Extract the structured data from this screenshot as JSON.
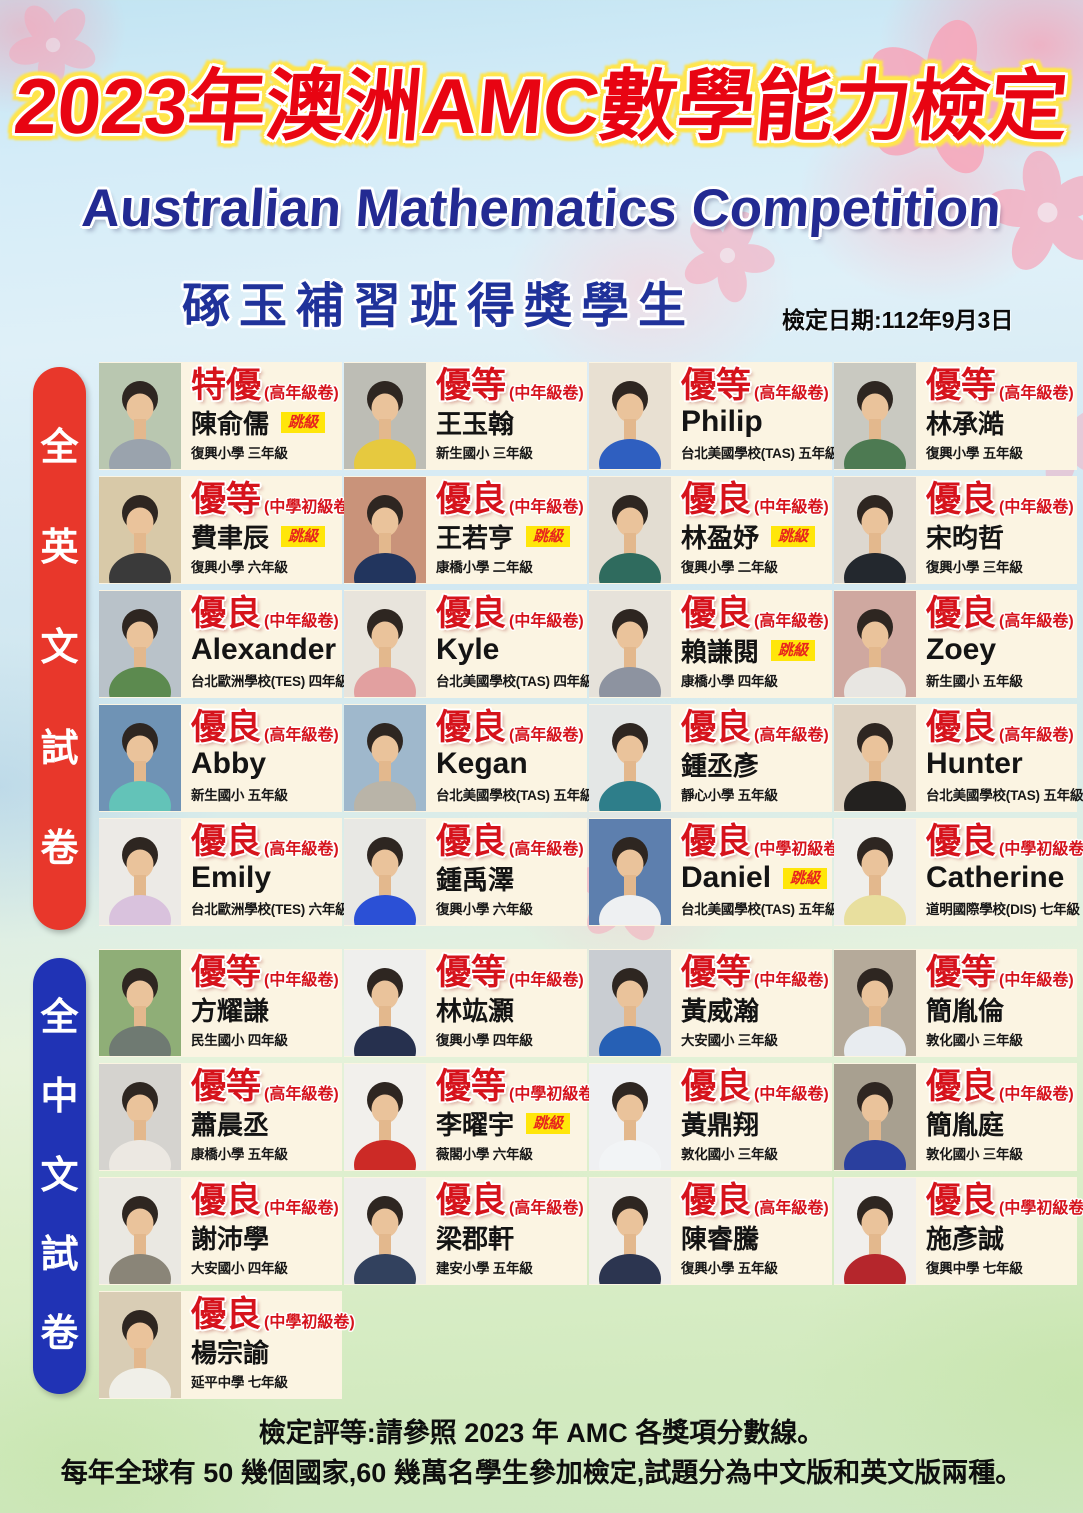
{
  "header": {
    "title": "2023年澳洲AMC數學能力檢定",
    "subtitle": "Australian Mathematics Competition",
    "banner": "硺玉補習班得獎學生",
    "date": "檢定日期:112年9月3日"
  },
  "badge_label": "跳級",
  "colors": {
    "award_red": "#d6131c",
    "english_pill": "#e8372b",
    "chinese_pill": "#2033b5",
    "badge_yellow": "#ffe60a",
    "card_cream": "#fbf4e2"
  },
  "sections": [
    {
      "label": "全英文試卷",
      "students": [
        {
          "award": "特優",
          "paper": "(高年級卷)",
          "name": "陳俞儒",
          "skip": true,
          "school": "復興小學 三年級"
        },
        {
          "award": "優等",
          "paper": "(中年級卷)",
          "name": "王玉翰",
          "skip": false,
          "school": "新生國小 三年級"
        },
        {
          "award": "優等",
          "paper": "(高年級卷)",
          "name": "Philip",
          "skip": false,
          "school": "台北美國學校(TAS) 五年級"
        },
        {
          "award": "優等",
          "paper": "(高年級卷)",
          "name": "林承澔",
          "skip": false,
          "school": "復興小學 五年級"
        },
        {
          "award": "優等",
          "paper": "(中學初級卷)",
          "name": "費聿辰",
          "skip": true,
          "school": "復興小學 六年級"
        },
        {
          "award": "優良",
          "paper": "(中年級卷)",
          "name": "王若亨",
          "skip": true,
          "school": "康橋小學 二年級"
        },
        {
          "award": "優良",
          "paper": "(中年級卷)",
          "name": "林盈妤",
          "skip": true,
          "school": "復興小學 二年級"
        },
        {
          "award": "優良",
          "paper": "(中年級卷)",
          "name": "宋昀哲",
          "skip": false,
          "school": "復興小學 三年級"
        },
        {
          "award": "優良",
          "paper": "(中年級卷)",
          "name": "Alexander",
          "skip": false,
          "school": "台北歐洲學校(TES) 四年級"
        },
        {
          "award": "優良",
          "paper": "(中年級卷)",
          "name": "Kyle",
          "skip": false,
          "school": "台北美國學校(TAS) 四年級"
        },
        {
          "award": "優良",
          "paper": "(高年級卷)",
          "name": "賴謙閱",
          "skip": true,
          "school": "康橋小學 四年級"
        },
        {
          "award": "優良",
          "paper": "(高年級卷)",
          "name": "Zoey",
          "skip": false,
          "school": "新生國小 五年級"
        },
        {
          "award": "優良",
          "paper": "(高年級卷)",
          "name": "Abby",
          "skip": false,
          "school": "新生國小 五年級"
        },
        {
          "award": "優良",
          "paper": "(高年級卷)",
          "name": "Kegan",
          "skip": false,
          "school": "台北美國學校(TAS) 五年級"
        },
        {
          "award": "優良",
          "paper": "(高年級卷)",
          "name": "鍾丞彥",
          "skip": false,
          "school": "靜心小學 五年級"
        },
        {
          "award": "優良",
          "paper": "(高年級卷)",
          "name": "Hunter",
          "skip": false,
          "school": "台北美國學校(TAS) 五年級"
        },
        {
          "award": "優良",
          "paper": "(高年級卷)",
          "name": "Emily",
          "skip": false,
          "school": "台北歐洲學校(TES) 六年級"
        },
        {
          "award": "優良",
          "paper": "(高年級卷)",
          "name": "鍾禹澤",
          "skip": false,
          "school": "復興小學 六年級"
        },
        {
          "award": "優良",
          "paper": "(中學初級卷)",
          "name": "Daniel",
          "skip": true,
          "school": "台北美國學校(TAS) 五年級"
        },
        {
          "award": "優良",
          "paper": "(中學初級卷)",
          "name": "Catherine",
          "skip": false,
          "school": "道明國際學校(DIS) 七年級"
        }
      ]
    },
    {
      "label": "全中文試卷",
      "students": [
        {
          "award": "優等",
          "paper": "(中年級卷)",
          "name": "方耀謙",
          "skip": false,
          "school": "民生國小 四年級"
        },
        {
          "award": "優等",
          "paper": "(中年級卷)",
          "name": "林竑灝",
          "skip": false,
          "school": "復興小學 四年級"
        },
        {
          "award": "優等",
          "paper": "(中年級卷)",
          "name": "黃威瀚",
          "skip": false,
          "school": "大安國小 三年級"
        },
        {
          "award": "優等",
          "paper": "(中年級卷)",
          "name": "簡胤倫",
          "skip": false,
          "school": "敦化國小 三年級"
        },
        {
          "award": "優等",
          "paper": "(高年級卷)",
          "name": "蕭晨丞",
          "skip": false,
          "school": "康橋小學 五年級"
        },
        {
          "award": "優等",
          "paper": "(中學初級卷)",
          "name": "李曜宇",
          "skip": true,
          "school": "薇閣小學 六年級"
        },
        {
          "award": "優良",
          "paper": "(中年級卷)",
          "name": "黃鼎翔",
          "skip": false,
          "school": "敦化國小 三年級"
        },
        {
          "award": "優良",
          "paper": "(中年級卷)",
          "name": "簡胤庭",
          "skip": false,
          "school": "敦化國小 三年級"
        },
        {
          "award": "優良",
          "paper": "(中年級卷)",
          "name": "謝沛學",
          "skip": false,
          "school": "大安國小 四年級"
        },
        {
          "award": "優良",
          "paper": "(高年級卷)",
          "name": "梁郡軒",
          "skip": false,
          "school": "建安小學 五年級"
        },
        {
          "award": "優良",
          "paper": "(高年級卷)",
          "name": "陳睿騰",
          "skip": false,
          "school": "復興小學 五年級"
        },
        {
          "award": "優良",
          "paper": "(中學初級卷)",
          "name": "施彥誠",
          "skip": false,
          "school": "復興中學 七年級"
        },
        {
          "award": "優良",
          "paper": "(中學初級卷)",
          "name": "楊宗諭",
          "skip": false,
          "school": "延平中學 七年級"
        }
      ]
    }
  ],
  "footer": {
    "line1": "檢定評等:請參照 2023 年 AMC 各獎項分數線。",
    "line2": "每年全球有 50 幾個國家,60 幾萬名學生參加檢定,試題分為中文版和英文版兩種。"
  }
}
